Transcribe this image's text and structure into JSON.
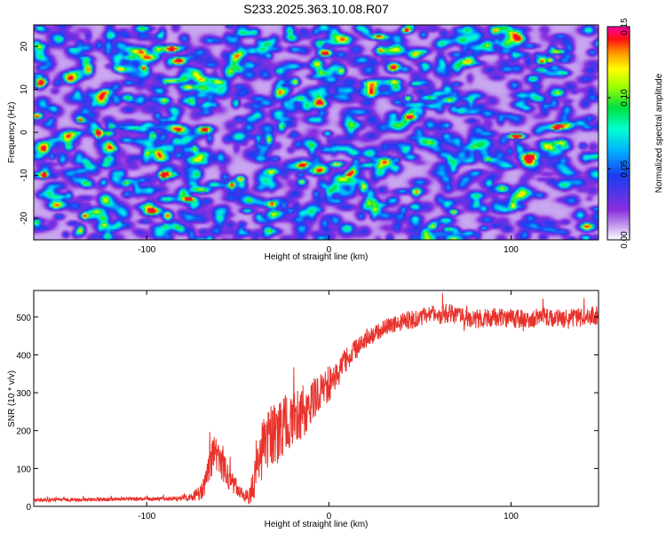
{
  "title": "S233.2025.363.10.08.R07",
  "chart_data": [
    {
      "type": "heatmap",
      "name": "spectrogram",
      "xlabel": "Height of straight line (km)",
      "ylabel": "Frequency (Hz)",
      "xlim": [
        -162,
        148
      ],
      "ylim": [
        -25,
        25
      ],
      "xticks": [
        -100,
        0,
        100
      ],
      "xtick_labels": [
        "-100",
        "0",
        "100"
      ],
      "yticks": [
        -20,
        -10,
        0,
        10,
        20
      ],
      "ytick_labels": [
        "-20",
        "-10",
        "0",
        "10",
        "20"
      ],
      "colorbar": {
        "label": "Normalized spectral amplitude",
        "range": [
          0,
          0.15
        ],
        "ticks": [
          0,
          0.05,
          0.1,
          0.15
        ],
        "tick_labels": [
          "0.00",
          "0.05",
          "0.10",
          "0.15"
        ],
        "colormap": "rainbow (white-violet-blue-cyan-green-yellow-red-magenta)"
      },
      "description_values": {
        "typical_amplitude": 0.03,
        "peak_amplitude": 0.13
      }
    },
    {
      "type": "line",
      "name": "snr",
      "xlabel": "Height of straight line (km)",
      "ylabel": "SNR (10 * v/v)",
      "xlim": [
        -162,
        148
      ],
      "ylim": [
        0,
        570
      ],
      "xticks": [
        -100,
        0,
        100
      ],
      "xtick_labels": [
        "-100",
        "0",
        "100"
      ],
      "yticks": [
        0,
        100,
        200,
        300,
        400,
        500
      ],
      "ytick_labels": [
        "0",
        "100",
        "200",
        "300",
        "400",
        "500"
      ],
      "color": "#e8332c",
      "series": [
        {
          "name": "SNR",
          "x": [
            -162,
            -140,
            -120,
            -100,
            -85,
            -75,
            -70,
            -66,
            -63,
            -60,
            -57,
            -54,
            -50,
            -47,
            -44,
            -41,
            -38,
            -36,
            -34,
            -31,
            -28,
            -25,
            -22,
            -19,
            -16,
            -13,
            -10,
            -7,
            -4,
            -1,
            2,
            5,
            8,
            11,
            14,
            17,
            20,
            25,
            30,
            35,
            40,
            45,
            50,
            55,
            60,
            65,
            70,
            75,
            80,
            90,
            100,
            110,
            120,
            130,
            140,
            148
          ],
          "y": [
            17,
            18,
            18,
            20,
            20,
            24,
            40,
            90,
            140,
            120,
            95,
            70,
            45,
            30,
            25,
            60,
            120,
            160,
            175,
            185,
            190,
            210,
            225,
            230,
            240,
            250,
            275,
            290,
            300,
            320,
            335,
            350,
            380,
            395,
            410,
            425,
            440,
            455,
            470,
            480,
            490,
            495,
            500,
            505,
            505,
            510,
            505,
            500,
            495,
            500,
            495,
            495,
            500,
            495,
            500,
            505
          ],
          "noise_amplitude": [
            5,
            5,
            5,
            5,
            6,
            10,
            25,
            45,
            50,
            45,
            40,
            30,
            20,
            15,
            20,
            50,
            70,
            80,
            85,
            85,
            80,
            80,
            75,
            75,
            70,
            65,
            60,
            55,
            55,
            50,
            45,
            40,
            35,
            30,
            28,
            25,
            22,
            22,
            22,
            22,
            25,
            25,
            25,
            25,
            25,
            28,
            25,
            25,
            25,
            25,
            25,
            25,
            25,
            25,
            25,
            25
          ]
        }
      ]
    }
  ]
}
